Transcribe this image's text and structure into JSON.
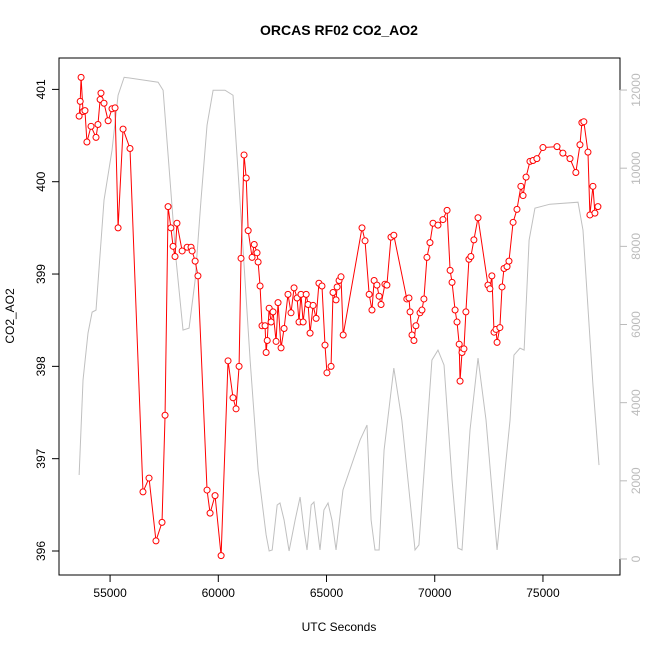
{
  "chart_data": {
    "type": "line",
    "title": "ORCAS RF02 CO2_AO2",
    "x_label": "UTC Seconds",
    "y_label": "CO2_AO2",
    "xlim": [
      52640,
      78560
    ],
    "ylim": [
      395.74,
      401.34
    ],
    "y2lim": [
      -410,
      12820
    ],
    "xticks": [
      55000,
      60000,
      65000,
      70000,
      75000
    ],
    "yticks": [
      396,
      397,
      398,
      399,
      400,
      401
    ],
    "y2ticks": [
      0,
      2000,
      4000,
      6000,
      8000,
      10000,
      12000
    ],
    "series": [
      {
        "color": "#c0c0c0",
        "axis": "y2",
        "markers": false,
        "x": [
          53570,
          53750,
          53980,
          54170,
          54350,
          54720,
          55090,
          55370,
          55650,
          57220,
          57450,
          57770,
          58050,
          58370,
          58650,
          58930,
          59200,
          59480,
          59760,
          60310,
          60680,
          61000,
          61470,
          61840,
          62210,
          62350,
          62490,
          62720,
          62850,
          63040,
          63270,
          63550,
          63780,
          63960,
          64100,
          64290,
          64420,
          64700,
          64880,
          65070,
          65250,
          65440,
          65760,
          66550,
          66870,
          67060,
          67240,
          67430,
          67660,
          68110,
          68480,
          68810,
          69090,
          69270,
          69870,
          70150,
          70430,
          70800,
          71070,
          71260,
          71630,
          72000,
          72370,
          72880,
          73480,
          73660,
          73940,
          74130,
          74360,
          74630,
          75320,
          76620,
          76850,
          77310,
          77590
        ],
        "values": [
          2148,
          4578,
          5780,
          6317,
          6368,
          9181,
          10460,
          11867,
          12327,
          12200,
          11995,
          9693,
          7647,
          5857,
          5908,
          7136,
          9181,
          11100,
          11995,
          11995,
          11867,
          9181,
          5090,
          2276,
          614,
          205,
          230,
          1381,
          1432,
          997,
          205,
          997,
          1586,
          742,
          230,
          1381,
          1458,
          230,
          1253,
          1432,
          997,
          230,
          1765,
          3043,
          3427,
          997,
          230,
          230,
          2788,
          4885,
          3555,
          1765,
          230,
          358,
          5090,
          5345,
          4962,
          2020,
          281,
          230,
          3299,
          5141,
          3555,
          230,
          3555,
          5217,
          5396,
          5345,
          8158,
          8977,
          9079,
          9130,
          8414,
          4450,
          2404
        ]
      },
      {
        "color": "#ff0000",
        "axis": "y",
        "markers": true,
        "x": [
          53570,
          53620,
          53660,
          53750,
          53840,
          53930,
          54120,
          54350,
          54440,
          54540,
          54580,
          54720,
          54910,
          55090,
          55230,
          55370,
          55600,
          55920,
          56520,
          56800,
          57120,
          57400,
          57540,
          57680,
          57810,
          57910,
          58000,
          58090,
          58330,
          58560,
          58740,
          58790,
          58930,
          59060,
          59480,
          59620,
          59850,
          60130,
          60450,
          60680,
          60820,
          60960,
          61050,
          61190,
          61290,
          61380,
          61560,
          61660,
          61790,
          61840,
          61930,
          62020,
          62160,
          62210,
          62260,
          62350,
          62440,
          62530,
          62670,
          62760,
          62900,
          63040,
          63220,
          63360,
          63500,
          63640,
          63730,
          63820,
          63920,
          64060,
          64150,
          64240,
          64380,
          64520,
          64650,
          64790,
          64930,
          65020,
          65210,
          65300,
          65440,
          65490,
          65580,
          65670,
          65770,
          66640,
          66780,
          66970,
          67100,
          67200,
          67330,
          67430,
          67520,
          67700,
          67790,
          67980,
          68110,
          68710,
          68810,
          68860,
          68950,
          69040,
          69130,
          69320,
          69410,
          69500,
          69640,
          69780,
          69920,
          70150,
          70380,
          70570,
          70710,
          70800,
          70940,
          71030,
          71130,
          71170,
          71260,
          71350,
          71440,
          71580,
          71670,
          71810,
          72000,
          72460,
          72550,
          72640,
          72740,
          72830,
          72880,
          73010,
          73110,
          73200,
          73340,
          73430,
          73620,
          73800,
          73980,
          74080,
          74220,
          74400,
          74540,
          74720,
          75000,
          75650,
          75920,
          76250,
          76520,
          76710,
          76800,
          76890,
          77080,
          77170,
          77310,
          77400,
          77540
        ],
        "values": [
          400.71,
          400.87,
          401.13,
          400.76,
          400.77,
          400.43,
          400.6,
          400.48,
          400.62,
          400.89,
          400.96,
          400.85,
          400.66,
          400.79,
          400.8,
          399.5,
          400.57,
          400.36,
          396.64,
          396.79,
          396.11,
          396.31,
          397.47,
          399.73,
          399.5,
          399.3,
          399.19,
          399.55,
          399.25,
          399.29,
          399.29,
          399.25,
          399.14,
          398.98,
          396.66,
          396.41,
          396.6,
          395.95,
          398.06,
          397.66,
          397.54,
          398,
          399.17,
          400.29,
          400.04,
          399.47,
          399.18,
          399.32,
          399.23,
          399.13,
          398.87,
          398.44,
          398.44,
          398.15,
          398.28,
          398.63,
          398.48,
          398.59,
          398.27,
          398.69,
          398.2,
          398.41,
          398.78,
          398.58,
          398.85,
          398.74,
          398.48,
          398.78,
          398.48,
          398.78,
          398.67,
          398.36,
          398.66,
          398.52,
          398.9,
          398.87,
          398.23,
          397.93,
          398,
          398.8,
          398.72,
          398.86,
          398.93,
          398.97,
          398.34,
          399.5,
          399.36,
          398.78,
          398.61,
          398.93,
          398.88,
          398.76,
          398.67,
          398.89,
          398.88,
          399.4,
          399.42,
          398.73,
          398.74,
          398.59,
          398.34,
          398.28,
          398.44,
          398.58,
          398.61,
          398.73,
          399.18,
          399.34,
          399.55,
          399.53,
          399.59,
          399.69,
          399.04,
          398.91,
          398.61,
          398.48,
          398.24,
          397.84,
          398.15,
          398.19,
          398.59,
          399.16,
          399.19,
          399.37,
          399.61,
          398.88,
          398.84,
          398.98,
          398.37,
          398.4,
          398.26,
          398.42,
          398.86,
          399.06,
          399.08,
          399.14,
          399.56,
          399.7,
          399.95,
          399.85,
          400.05,
          400.22,
          400.23,
          400.25,
          400.37,
          400.38,
          400.31,
          400.25,
          400.1,
          400.4,
          400.64,
          400.65,
          400.32,
          399.64,
          399.95,
          399.66,
          399.73
        ]
      }
    ]
  }
}
